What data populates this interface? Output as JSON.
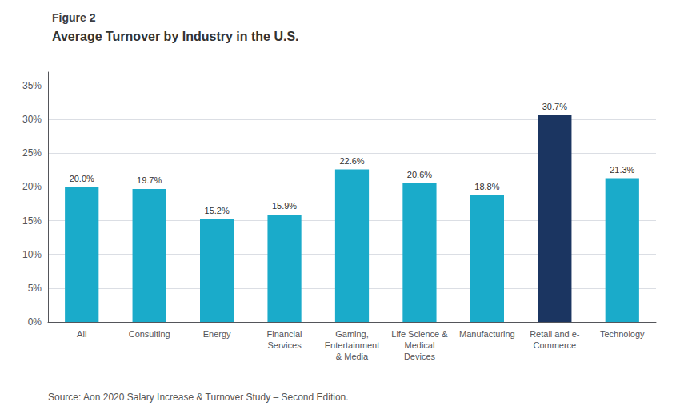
{
  "chart_data": {
    "type": "bar",
    "title": "Figure 2",
    "subtitle": "Average Turnover by Industry in the U.S.",
    "categories": [
      "All",
      "Consulting",
      "Energy",
      "Financial\nServices",
      "Gaming,\nEntertainment\n& Media",
      "Life Science &\nMedical\nDevices",
      "Manufacturing",
      "Retail and e-\nCommerce",
      "Technology"
    ],
    "values": [
      20.0,
      19.7,
      15.2,
      15.9,
      22.6,
      20.6,
      18.8,
      30.7,
      21.3
    ],
    "value_labels": [
      "20.0%",
      "19.7%",
      "15.2%",
      "15.9%",
      "22.6%",
      "20.6%",
      "18.8%",
      "30.7%",
      "21.3%"
    ],
    "data_labels": true,
    "colors": [
      "#1aabca",
      "#1aabca",
      "#1aabca",
      "#1aabca",
      "#1aabca",
      "#1aabca",
      "#1aabca",
      "#1b3561",
      "#1aabca"
    ],
    "ylim": [
      0,
      37
    ],
    "yticks": [
      {
        "value": 0,
        "label": "0%"
      },
      {
        "value": 5,
        "label": "5%"
      },
      {
        "value": 10,
        "label": "10%"
      },
      {
        "value": 15,
        "label": "15%"
      },
      {
        "value": 20,
        "label": "20%"
      },
      {
        "value": 25,
        "label": "25%"
      },
      {
        "value": 30,
        "label": "30%"
      },
      {
        "value": 35,
        "label": "35%"
      }
    ],
    "grid": true,
    "source": "Source: Aon 2020 Salary Increase & Turnover Study – Second Edition."
  }
}
